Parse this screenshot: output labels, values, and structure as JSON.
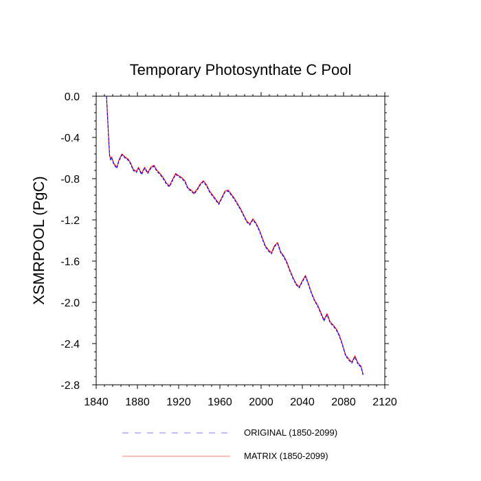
{
  "chart_data": {
    "type": "line",
    "title": "Temporary Photosynthate C Pool",
    "xlabel": "",
    "ylabel": "XSMRPOOL  (PgC)",
    "xlim": [
      1840,
      2120
    ],
    "ylim": [
      -2.8,
      0.0
    ],
    "xticks": [
      1840,
      1880,
      1920,
      1960,
      2000,
      2040,
      2080,
      2120
    ],
    "xtick_labels": [
      "1840",
      "1880",
      "1920",
      "1960",
      "2000",
      "2040",
      "2080",
      "2120"
    ],
    "yticks": [
      0.0,
      -0.4,
      -0.8,
      -1.2,
      -1.6,
      -2.0,
      -2.4,
      -2.8
    ],
    "ytick_labels": [
      "0.0",
      "-0.4",
      "-0.8",
      "-1.2",
      "-1.6",
      "-2.0",
      "-2.4",
      "-2.8"
    ],
    "grid": false,
    "legend_position": "bottom",
    "x": [
      1850,
      1851,
      1852,
      1853,
      1854,
      1855,
      1857,
      1860,
      1862,
      1865,
      1868,
      1871,
      1873,
      1876,
      1879,
      1881,
      1884,
      1887,
      1890,
      1893,
      1896,
      1899,
      1902,
      1905,
      1908,
      1911,
      1914,
      1917,
      1920,
      1923,
      1926,
      1929,
      1932,
      1935,
      1938,
      1941,
      1944,
      1947,
      1950,
      1953,
      1956,
      1959,
      1962,
      1965,
      1968,
      1971,
      1974,
      1977,
      1980,
      1983,
      1986,
      1989,
      1992,
      1995,
      1998,
      2001,
      2004,
      2007,
      2010,
      2013,
      2016,
      2019,
      2022,
      2025,
      2028,
      2031,
      2034,
      2037,
      2040,
      2043,
      2046,
      2049,
      2052,
      2055,
      2058,
      2061,
      2064,
      2067,
      2070,
      2073,
      2076,
      2079,
      2082,
      2085,
      2088,
      2091,
      2094,
      2097,
      2099
    ],
    "series": [
      {
        "name": "ORIGINAL (1850-2099)",
        "color": "#0000ff",
        "dash": "dashed",
        "values": [
          0.0,
          -0.2,
          -0.4,
          -0.58,
          -0.62,
          -0.6,
          -0.66,
          -0.7,
          -0.63,
          -0.57,
          -0.6,
          -0.62,
          -0.65,
          -0.72,
          -0.74,
          -0.7,
          -0.76,
          -0.7,
          -0.75,
          -0.7,
          -0.68,
          -0.73,
          -0.76,
          -0.8,
          -0.85,
          -0.88,
          -0.82,
          -0.76,
          -0.78,
          -0.8,
          -0.83,
          -0.9,
          -0.92,
          -0.95,
          -0.91,
          -0.86,
          -0.83,
          -0.87,
          -0.93,
          -0.97,
          -1.01,
          -1.05,
          -0.99,
          -0.93,
          -0.92,
          -0.96,
          -1.0,
          -1.05,
          -1.1,
          -1.16,
          -1.22,
          -1.25,
          -1.2,
          -1.24,
          -1.3,
          -1.38,
          -1.46,
          -1.5,
          -1.53,
          -1.46,
          -1.43,
          -1.52,
          -1.56,
          -1.62,
          -1.7,
          -1.77,
          -1.83,
          -1.86,
          -1.8,
          -1.75,
          -1.83,
          -1.92,
          -1.99,
          -2.04,
          -2.11,
          -2.18,
          -2.12,
          -2.2,
          -2.23,
          -2.27,
          -2.33,
          -2.42,
          -2.52,
          -2.56,
          -2.59,
          -2.53,
          -2.6,
          -2.63,
          -2.71
        ]
      },
      {
        "name": "MATRIX (1850-2099)",
        "color": "#ff0000",
        "dash": "solid",
        "values": [
          0.0,
          -0.19,
          -0.39,
          -0.57,
          -0.61,
          -0.59,
          -0.65,
          -0.69,
          -0.62,
          -0.56,
          -0.59,
          -0.61,
          -0.64,
          -0.71,
          -0.73,
          -0.69,
          -0.75,
          -0.69,
          -0.74,
          -0.69,
          -0.67,
          -0.72,
          -0.75,
          -0.79,
          -0.84,
          -0.87,
          -0.81,
          -0.75,
          -0.77,
          -0.79,
          -0.82,
          -0.89,
          -0.91,
          -0.94,
          -0.9,
          -0.85,
          -0.82,
          -0.86,
          -0.92,
          -0.96,
          -1.0,
          -1.04,
          -0.98,
          -0.92,
          -0.91,
          -0.95,
          -0.99,
          -1.04,
          -1.09,
          -1.15,
          -1.21,
          -1.24,
          -1.19,
          -1.23,
          -1.29,
          -1.37,
          -1.45,
          -1.49,
          -1.52,
          -1.45,
          -1.42,
          -1.51,
          -1.55,
          -1.61,
          -1.69,
          -1.76,
          -1.82,
          -1.85,
          -1.79,
          -1.74,
          -1.82,
          -1.91,
          -1.98,
          -2.03,
          -2.1,
          -2.17,
          -2.11,
          -2.19,
          -2.22,
          -2.26,
          -2.32,
          -2.41,
          -2.51,
          -2.55,
          -2.58,
          -2.52,
          -2.59,
          -2.62,
          -2.7
        ]
      }
    ]
  }
}
